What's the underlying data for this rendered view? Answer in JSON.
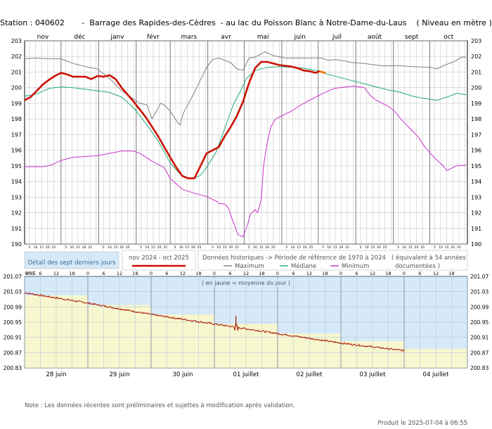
{
  "title": "Station : 040602       -  Barrage des Rapides-des-Cèdres  - au lac du Poisson Blanc à Notre-Dame-du-Laus    ( Niveau en mètre )",
  "legend": {
    "detail_label": "Détail des sept derniers jours",
    "period_label": "nov 2024 - oct 2025",
    "historical_label": "Données historiques -> Période de référence  de 1970 à 2024",
    "equivalent_label": "( équivalent à 54 années",
    "documented_label": "documentées )",
    "maximum_label": "Maximum",
    "median_label": "Médiane",
    "minimum_label": "Minimum"
  },
  "subtitle": "( en jaune = moyenne du jour )",
  "hne_label": "HNE",
  "note": "Note : Les données récentes sont préliminaires et sujettes à modification après validation.",
  "footer": "Produit le 2025-07-04 à 06:55",
  "colors": {
    "current": "#cc1100",
    "maximum": "#808080",
    "median": "#22aa77",
    "minimum": "#cc33cc",
    "recent": "#aa1100",
    "sky": "#d6e9f8",
    "yellow": "#f7f7cf"
  },
  "chart_data": [
    {
      "type": "line",
      "title": "Station : 040602 - Barrage des Rapides-des-Cèdres - au lac du Poisson Blanc à Notre-Dame-du-Laus ( Niveau en mètre )",
      "x_unit": "days since 1 Nov 2024",
      "months": [
        "nov",
        "déc",
        "janv",
        "févr",
        "mars",
        "avr",
        "mai",
        "juin",
        "juil",
        "août",
        "sept",
        "oct"
      ],
      "day_ticks": [
        "5",
        "10",
        "15",
        "20",
        "25"
      ],
      "ylim": [
        190,
        203
      ],
      "yticks": [
        190,
        191,
        192,
        193,
        194,
        195,
        196,
        197,
        198,
        199,
        200,
        201,
        202,
        203
      ],
      "grid": true,
      "series": [
        {
          "name": "Maximum",
          "color": "#808080",
          "points": [
            [
              0,
              201.85
            ],
            [
              10,
              201.9
            ],
            [
              20,
              201.85
            ],
            [
              30,
              201.85
            ],
            [
              40,
              201.55
            ],
            [
              50,
              201.35
            ],
            [
              60,
              201.2
            ],
            [
              70,
              200.6
            ],
            [
              80,
              199.8
            ],
            [
              95,
              199.0
            ],
            [
              101,
              198.9
            ],
            [
              105,
              198.0
            ],
            [
              110,
              198.7
            ],
            [
              112,
              199.0
            ],
            [
              115,
              198.9
            ],
            [
              120,
              198.5
            ],
            [
              125,
              197.9
            ],
            [
              128,
              197.6
            ],
            [
              131,
              198.4
            ],
            [
              140,
              199.7
            ],
            [
              150,
              201.3
            ],
            [
              155,
              201.8
            ],
            [
              160,
              201.9
            ],
            [
              170,
              201.6
            ],
            [
              175,
              201.2
            ],
            [
              180,
              201.1
            ],
            [
              185,
              201.9
            ],
            [
              190,
              201.95
            ],
            [
              198,
              202.3
            ],
            [
              205,
              202.05
            ],
            [
              215,
              201.9
            ],
            [
              225,
              201.9
            ],
            [
              245,
              201.9
            ],
            [
              250,
              201.75
            ],
            [
              256,
              201.8
            ],
            [
              265,
              201.7
            ],
            [
              270,
              201.6
            ],
            [
              280,
              201.55
            ],
            [
              295,
              201.4
            ],
            [
              310,
              201.4
            ],
            [
              320,
              201.35
            ],
            [
              335,
              201.3
            ],
            [
              340,
              201.2
            ],
            [
              345,
              201.4
            ],
            [
              355,
              201.7
            ],
            [
              360,
              201.95
            ],
            [
              364,
              201.95
            ]
          ]
        },
        {
          "name": "Médiane",
          "color": "#22aa77",
          "points": [
            [
              0,
              199.45
            ],
            [
              10,
              199.6
            ],
            [
              20,
              199.95
            ],
            [
              30,
              200.05
            ],
            [
              40,
              200.0
            ],
            [
              50,
              199.9
            ],
            [
              60,
              199.8
            ],
            [
              70,
              199.7
            ],
            [
              80,
              199.4
            ],
            [
              90,
              198.7
            ],
            [
              100,
              197.7
            ],
            [
              110,
              196.6
            ],
            [
              120,
              195.2
            ],
            [
              128,
              194.5
            ],
            [
              135,
              194.2
            ],
            [
              140,
              194.2
            ],
            [
              145,
              194.4
            ],
            [
              150,
              194.9
            ],
            [
              158,
              195.9
            ],
            [
              165,
              197.4
            ],
            [
              172,
              198.9
            ],
            [
              178,
              199.8
            ],
            [
              183,
              200.6
            ],
            [
              190,
              201.1
            ],
            [
              200,
              201.3
            ],
            [
              210,
              201.35
            ],
            [
              220,
              201.3
            ],
            [
              230,
              201.25
            ],
            [
              240,
              201.1
            ],
            [
              250,
              200.85
            ],
            [
              260,
              200.65
            ],
            [
              270,
              200.45
            ],
            [
              280,
              200.25
            ],
            [
              290,
              200.05
            ],
            [
              300,
              199.85
            ],
            [
              310,
              199.7
            ],
            [
              320,
              199.45
            ],
            [
              330,
              199.3
            ],
            [
              340,
              199.2
            ],
            [
              350,
              199.45
            ],
            [
              356,
              199.65
            ],
            [
              364,
              199.55
            ]
          ]
        },
        {
          "name": "Minimum",
          "color": "#cc33cc",
          "points": [
            [
              0,
              194.95
            ],
            [
              15,
              194.95
            ],
            [
              22,
              195.05
            ],
            [
              30,
              195.35
            ],
            [
              40,
              195.55
            ],
            [
              50,
              195.6
            ],
            [
              60,
              195.65
            ],
            [
              70,
              195.8
            ],
            [
              80,
              195.95
            ],
            [
              90,
              195.95
            ],
            [
              95,
              195.8
            ],
            [
              105,
              195.3
            ],
            [
              115,
              194.9
            ],
            [
              120,
              194.2
            ],
            [
              130,
              193.5
            ],
            [
              140,
              193.25
            ],
            [
              150,
              193.05
            ],
            [
              155,
              192.85
            ],
            [
              158,
              192.75
            ],
            [
              160,
              192.6
            ],
            [
              165,
              192.55
            ],
            [
              168,
              192.3
            ],
            [
              172,
              191.4
            ],
            [
              176,
              190.6
            ],
            [
              180,
              190.45
            ],
            [
              184,
              191.3
            ],
            [
              186,
              191.9
            ],
            [
              190,
              192.2
            ],
            [
              192,
              192.0
            ],
            [
              195,
              192.8
            ],
            [
              197,
              195.0
            ],
            [
              200,
              196.5
            ],
            [
              203,
              197.5
            ],
            [
              207,
              198.0
            ],
            [
              212,
              198.2
            ],
            [
              220,
              198.5
            ],
            [
              228,
              198.9
            ],
            [
              235,
              199.2
            ],
            [
              245,
              199.6
            ],
            [
              255,
              199.95
            ],
            [
              265,
              200.05
            ],
            [
              272,
              200.1
            ],
            [
              280,
              200.0
            ],
            [
              285,
              199.5
            ],
            [
              290,
              199.2
            ],
            [
              300,
              198.8
            ],
            [
              305,
              198.5
            ],
            [
              310,
              198.0
            ],
            [
              320,
              197.2
            ],
            [
              325,
              196.8
            ],
            [
              330,
              196.2
            ],
            [
              338,
              195.5
            ],
            [
              345,
              195.0
            ],
            [
              348,
              194.7
            ],
            [
              352,
              194.85
            ],
            [
              356,
              195.0
            ],
            [
              364,
              195.05
            ]
          ]
        },
        {
          "name": "nov 2024 - oct 2025",
          "color": "#cc1100",
          "points": [
            [
              0,
              199.2
            ],
            [
              5,
              199.4
            ],
            [
              10,
              199.8
            ],
            [
              15,
              200.2
            ],
            [
              20,
              200.5
            ],
            [
              25,
              200.75
            ],
            [
              30,
              200.95
            ],
            [
              35,
              200.85
            ],
            [
              40,
              200.7
            ],
            [
              45,
              200.7
            ],
            [
              50,
              200.7
            ],
            [
              55,
              200.55
            ],
            [
              60,
              200.75
            ],
            [
              65,
              200.7
            ],
            [
              70,
              200.8
            ],
            [
              75,
              200.55
            ],
            [
              80,
              200.0
            ],
            [
              90,
              199.1
            ],
            [
              100,
              198.1
            ],
            [
              110,
              196.9
            ],
            [
              120,
              195.55
            ],
            [
              125,
              194.9
            ],
            [
              130,
              194.35
            ],
            [
              135,
              194.2
            ],
            [
              140,
              194.2
            ],
            [
              145,
              195.0
            ],
            [
              150,
              195.8
            ],
            [
              155,
              196.0
            ],
            [
              160,
              196.2
            ],
            [
              165,
              196.9
            ],
            [
              170,
              197.5
            ],
            [
              175,
              198.2
            ],
            [
              180,
              199.1
            ],
            [
              185,
              200.3
            ],
            [
              190,
              201.25
            ],
            [
              195,
              201.65
            ],
            [
              200,
              201.65
            ],
            [
              210,
              201.45
            ],
            [
              220,
              201.35
            ],
            [
              225,
              201.25
            ],
            [
              230,
              201.1
            ],
            [
              235,
              201.05
            ],
            [
              240,
              200.95
            ],
            [
              243,
              201.05
            ],
            [
              245,
              201.0
            ],
            [
              248,
              200.95
            ]
          ]
        }
      ]
    },
    {
      "type": "line",
      "title": "Détail des sept derniers jours",
      "x_unit": "days since 28 juin 00:00",
      "day_labels": [
        "28 juin",
        "29 juin",
        "30 juin",
        "01 juillet",
        "02 juillet",
        "03 juillet",
        "04 juillet"
      ],
      "hour_labels": [
        "0",
        "6",
        "12",
        "18"
      ],
      "ylim": [
        200.83,
        201.07
      ],
      "yticks": [
        200.83,
        200.87,
        200.91,
        200.95,
        200.99,
        201.03,
        201.07
      ],
      "grid": true,
      "daily_mean": [
        201.02,
        200.995,
        200.97,
        200.945,
        200.92,
        200.9,
        200.88
      ],
      "series": [
        {
          "name": "Niveau",
          "color": "#aa1100",
          "points": [
            [
              0,
              201.027
            ],
            [
              1.0,
              201.0
            ],
            [
              2.0,
              200.97
            ],
            [
              3.0,
              200.945
            ],
            [
              4.0,
              200.92
            ],
            [
              5.0,
              200.895
            ],
            [
              6.0,
              200.875
            ]
          ]
        }
      ]
    }
  ]
}
